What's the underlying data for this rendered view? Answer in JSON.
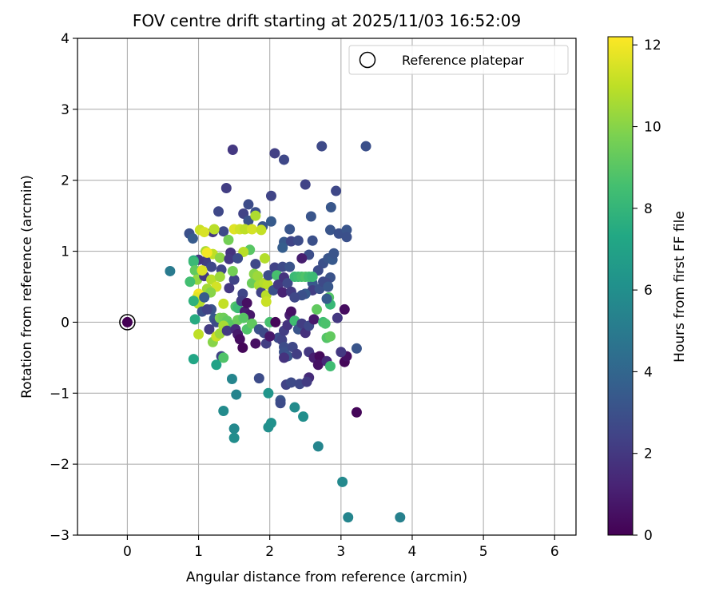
{
  "chart_data": {
    "type": "scatter",
    "title": "FOV centre drift starting at 2025/11/03 16:52:09",
    "xlabel": "Angular distance from reference (arcmin)",
    "ylabel": "Rotation from reference (arcmin)",
    "xlim": [
      -0.7,
      6.3
    ],
    "ylim": [
      -3,
      4
    ],
    "xticks": [
      0,
      1,
      2,
      3,
      4,
      5,
      6
    ],
    "xtick_labels": [
      "0",
      "1",
      "2",
      "3",
      "4",
      "5",
      "6"
    ],
    "yticks": [
      -3,
      -2,
      -1,
      0,
      1,
      2,
      3,
      4
    ],
    "ytick_labels": [
      "−3",
      "−2",
      "−1",
      "0",
      "1",
      "2",
      "3",
      "4"
    ],
    "grid": true,
    "legend": {
      "position": "top-right",
      "label": "Reference platepar"
    },
    "reference_point": {
      "x": 0,
      "y": 0
    },
    "colorbar": {
      "label": "Hours from first FF file",
      "min": 0,
      "max": 12.2,
      "ticks": [
        0,
        2,
        4,
        6,
        8,
        10,
        12
      ],
      "tick_labels": [
        "0",
        "2",
        "4",
        "6",
        "8",
        "10",
        "12"
      ],
      "colormap": "viridis"
    },
    "points": [
      {
        "x": 0.0,
        "y": 0.0,
        "h": 0.0
      },
      {
        "x": 1.48,
        "y": 2.43,
        "h": 2.0
      },
      {
        "x": 2.07,
        "y": 2.38,
        "h": 2.3
      },
      {
        "x": 2.2,
        "y": 2.29,
        "h": 2.6
      },
      {
        "x": 2.73,
        "y": 2.48,
        "h": 2.7
      },
      {
        "x": 3.35,
        "y": 2.48,
        "h": 3.0
      },
      {
        "x": 2.5,
        "y": 1.94,
        "h": 2.4
      },
      {
        "x": 2.93,
        "y": 1.85,
        "h": 2.6
      },
      {
        "x": 1.39,
        "y": 1.89,
        "h": 2.2
      },
      {
        "x": 2.02,
        "y": 1.78,
        "h": 2.5
      },
      {
        "x": 1.28,
        "y": 1.56,
        "h": 2.6
      },
      {
        "x": 1.63,
        "y": 1.53,
        "h": 2.4
      },
      {
        "x": 1.7,
        "y": 1.66,
        "h": 2.8
      },
      {
        "x": 1.8,
        "y": 1.55,
        "h": 3.0
      },
      {
        "x": 2.86,
        "y": 1.62,
        "h": 3.3
      },
      {
        "x": 2.58,
        "y": 1.49,
        "h": 3.2
      },
      {
        "x": 0.87,
        "y": 1.25,
        "h": 3.0
      },
      {
        "x": 0.92,
        "y": 1.18,
        "h": 3.5
      },
      {
        "x": 1.2,
        "y": 1.27,
        "h": 2.0
      },
      {
        "x": 1.35,
        "y": 1.28,
        "h": 2.7
      },
      {
        "x": 1.7,
        "y": 1.43,
        "h": 3.1
      },
      {
        "x": 1.9,
        "y": 1.35,
        "h": 3.3
      },
      {
        "x": 2.02,
        "y": 1.42,
        "h": 3.5
      },
      {
        "x": 2.28,
        "y": 1.31,
        "h": 3.2
      },
      {
        "x": 2.6,
        "y": 1.15,
        "h": 3.0
      },
      {
        "x": 2.85,
        "y": 1.3,
        "h": 3.2
      },
      {
        "x": 2.97,
        "y": 1.25,
        "h": 3.0
      },
      {
        "x": 3.08,
        "y": 1.3,
        "h": 3.2
      },
      {
        "x": 3.08,
        "y": 1.2,
        "h": 3.0
      },
      {
        "x": 2.2,
        "y": 1.13,
        "h": 3.4
      },
      {
        "x": 2.3,
        "y": 1.14,
        "h": 2.5
      },
      {
        "x": 2.4,
        "y": 1.15,
        "h": 2.8
      },
      {
        "x": 2.18,
        "y": 1.05,
        "h": 3.6
      },
      {
        "x": 1.02,
        "y": 1.3,
        "h": 11.2
      },
      {
        "x": 1.08,
        "y": 1.27,
        "h": 11.5
      },
      {
        "x": 1.22,
        "y": 1.31,
        "h": 10.9
      },
      {
        "x": 1.5,
        "y": 1.31,
        "h": 11.6
      },
      {
        "x": 1.58,
        "y": 1.31,
        "h": 11.3
      },
      {
        "x": 1.65,
        "y": 1.31,
        "h": 11.0
      },
      {
        "x": 1.8,
        "y": 1.5,
        "h": 10.7
      },
      {
        "x": 1.75,
        "y": 1.31,
        "h": 11.4
      },
      {
        "x": 1.88,
        "y": 1.3,
        "h": 11.1
      },
      {
        "x": 1.42,
        "y": 1.16,
        "h": 9.6
      },
      {
        "x": 1.72,
        "y": 1.02,
        "h": 9.0
      },
      {
        "x": 1.63,
        "y": 0.99,
        "h": 10.9
      },
      {
        "x": 1.1,
        "y": 1.0,
        "h": 10.6
      },
      {
        "x": 1.2,
        "y": 0.96,
        "h": 11.0
      },
      {
        "x": 1.3,
        "y": 0.91,
        "h": 10.1
      },
      {
        "x": 1.1,
        "y": 0.86,
        "h": 2.2
      },
      {
        "x": 1.18,
        "y": 0.78,
        "h": 2.6
      },
      {
        "x": 1.0,
        "y": 0.88,
        "h": 1.9
      },
      {
        "x": 1.45,
        "y": 0.98,
        "h": 1.8
      },
      {
        "x": 1.43,
        "y": 0.89,
        "h": 2.0
      },
      {
        "x": 1.32,
        "y": 0.74,
        "h": 2.5
      },
      {
        "x": 1.55,
        "y": 0.9,
        "h": 2.8
      },
      {
        "x": 1.8,
        "y": 0.82,
        "h": 2.6
      },
      {
        "x": 1.93,
        "y": 0.9,
        "h": 10.8
      },
      {
        "x": 2.07,
        "y": 0.77,
        "h": 2.4
      },
      {
        "x": 2.18,
        "y": 0.78,
        "h": 2.7
      },
      {
        "x": 2.28,
        "y": 0.78,
        "h": 3.1
      },
      {
        "x": 2.55,
        "y": 0.95,
        "h": 2.9
      },
      {
        "x": 2.45,
        "y": 0.9,
        "h": 1.0
      },
      {
        "x": 2.75,
        "y": 0.83,
        "h": 3.0
      },
      {
        "x": 2.82,
        "y": 0.9,
        "h": 3.2
      },
      {
        "x": 2.88,
        "y": 0.88,
        "h": 3.4
      },
      {
        "x": 2.9,
        "y": 0.97,
        "h": 3.2
      },
      {
        "x": 2.68,
        "y": 0.73,
        "h": 2.8
      },
      {
        "x": 2.85,
        "y": 0.63,
        "h": 3.1
      },
      {
        "x": 2.8,
        "y": 0.55,
        "h": 2.7
      },
      {
        "x": 2.6,
        "y": 0.55,
        "h": 3.4
      },
      {
        "x": 2.6,
        "y": 0.45,
        "h": 2.2
      },
      {
        "x": 0.6,
        "y": 0.72,
        "h": 5.0
      },
      {
        "x": 0.93,
        "y": 0.87,
        "h": 7.5
      },
      {
        "x": 0.93,
        "y": 0.85,
        "h": 8.2
      },
      {
        "x": 0.95,
        "y": 0.73,
        "h": 9.2
      },
      {
        "x": 0.98,
        "y": 0.6,
        "h": 10.2
      },
      {
        "x": 1.08,
        "y": 0.65,
        "h": 2.0
      },
      {
        "x": 1.18,
        "y": 0.6,
        "h": 10.9
      },
      {
        "x": 1.25,
        "y": 0.5,
        "h": 11.4
      },
      {
        "x": 1.3,
        "y": 0.64,
        "h": 10.4
      },
      {
        "x": 1.12,
        "y": 0.47,
        "h": 10.5
      },
      {
        "x": 1.17,
        "y": 0.42,
        "h": 10.0
      },
      {
        "x": 1.0,
        "y": 0.4,
        "h": 12.0
      },
      {
        "x": 0.98,
        "y": 0.35,
        "h": 11.7
      },
      {
        "x": 1.02,
        "y": 0.29,
        "h": 11.3
      },
      {
        "x": 1.0,
        "y": 0.26,
        "h": 10.8
      },
      {
        "x": 1.05,
        "y": 0.73,
        "h": 11.6
      },
      {
        "x": 1.12,
        "y": 0.98,
        "h": 12.0
      },
      {
        "x": 0.88,
        "y": 0.57,
        "h": 8.5
      },
      {
        "x": 0.93,
        "y": 0.3,
        "h": 7.8
      },
      {
        "x": 1.08,
        "y": 0.35,
        "h": 3.5
      },
      {
        "x": 1.18,
        "y": 0.18,
        "h": 3.1
      },
      {
        "x": 1.22,
        "y": 0.05,
        "h": 3.3
      },
      {
        "x": 1.35,
        "y": 0.26,
        "h": 11.1
      },
      {
        "x": 1.43,
        "y": 0.48,
        "h": 2.0
      },
      {
        "x": 1.5,
        "y": 0.6,
        "h": 2.4
      },
      {
        "x": 1.48,
        "y": 0.72,
        "h": 9.6
      },
      {
        "x": 1.52,
        "y": 0.22,
        "h": 8.8
      },
      {
        "x": 1.55,
        "y": 0.2,
        "h": 8.3
      },
      {
        "x": 1.62,
        "y": 0.4,
        "h": 2.5
      },
      {
        "x": 1.6,
        "y": 0.3,
        "h": 2.2
      },
      {
        "x": 1.65,
        "y": 0.15,
        "h": 1.0
      },
      {
        "x": 1.68,
        "y": 0.27,
        "h": 0.5
      },
      {
        "x": 1.72,
        "y": 0.1,
        "h": 0.8
      },
      {
        "x": 1.75,
        "y": 0.55,
        "h": 9.4
      },
      {
        "x": 1.78,
        "y": 0.68,
        "h": 10.0
      },
      {
        "x": 1.83,
        "y": 0.65,
        "h": 10.4
      },
      {
        "x": 1.85,
        "y": 0.52,
        "h": 10.6
      },
      {
        "x": 1.88,
        "y": 0.42,
        "h": 2.4
      },
      {
        "x": 1.92,
        "y": 0.55,
        "h": 10.8
      },
      {
        "x": 1.95,
        "y": 0.38,
        "h": 10.9
      },
      {
        "x": 1.97,
        "y": 0.53,
        "h": 11.0
      },
      {
        "x": 1.95,
        "y": 0.29,
        "h": 11.2
      },
      {
        "x": 1.98,
        "y": 0.66,
        "h": 2.9
      },
      {
        "x": 2.05,
        "y": 0.45,
        "h": 3.0
      },
      {
        "x": 2.1,
        "y": 0.66,
        "h": 8.6
      },
      {
        "x": 2.12,
        "y": 0.53,
        "h": 2.0
      },
      {
        "x": 2.2,
        "y": 0.63,
        "h": 1.8
      },
      {
        "x": 2.18,
        "y": 0.42,
        "h": 1.2
      },
      {
        "x": 2.25,
        "y": 0.55,
        "h": 2.6
      },
      {
        "x": 2.3,
        "y": 0.43,
        "h": 2.1
      },
      {
        "x": 2.35,
        "y": 0.64,
        "h": 8.2
      },
      {
        "x": 2.4,
        "y": 0.64,
        "h": 8.4
      },
      {
        "x": 2.45,
        "y": 0.64,
        "h": 8.6
      },
      {
        "x": 2.5,
        "y": 0.64,
        "h": 8.8
      },
      {
        "x": 2.55,
        "y": 0.64,
        "h": 8.5
      },
      {
        "x": 2.6,
        "y": 0.64,
        "h": 8.3
      },
      {
        "x": 2.7,
        "y": 0.47,
        "h": 3.0
      },
      {
        "x": 2.75,
        "y": 0.57,
        "h": 2.7
      },
      {
        "x": 2.82,
        "y": 0.5,
        "h": 3.3
      },
      {
        "x": 2.83,
        "y": 0.35,
        "h": 8.9
      },
      {
        "x": 2.85,
        "y": 0.25,
        "h": 8.1
      },
      {
        "x": 2.8,
        "y": 0.33,
        "h": 3.5
      },
      {
        "x": 2.5,
        "y": 0.4,
        "h": 3.4
      },
      {
        "x": 2.45,
        "y": 0.38,
        "h": 3.0
      },
      {
        "x": 2.35,
        "y": 0.35,
        "h": 2.6
      },
      {
        "x": 1.05,
        "y": 0.15,
        "h": 3.0
      },
      {
        "x": 1.12,
        "y": 0.18,
        "h": 2.4
      },
      {
        "x": 1.15,
        "y": -0.1,
        "h": 2.1
      },
      {
        "x": 1.25,
        "y": 0.0,
        "h": 2.8
      },
      {
        "x": 1.3,
        "y": 0.06,
        "h": 9.8
      },
      {
        "x": 1.35,
        "y": 0.06,
        "h": 9.5
      },
      {
        "x": 1.4,
        "y": 0.02,
        "h": 9.2
      },
      {
        "x": 1.45,
        "y": -0.04,
        "h": 9.0
      },
      {
        "x": 1.55,
        "y": 0.03,
        "h": 9.4
      },
      {
        "x": 1.63,
        "y": 0.06,
        "h": 9.0
      },
      {
        "x": 1.68,
        "y": -0.1,
        "h": 8.8
      },
      {
        "x": 1.75,
        "y": -0.02,
        "h": 9.2
      },
      {
        "x": 1.85,
        "y": -0.1,
        "h": 3.0
      },
      {
        "x": 1.92,
        "y": -0.15,
        "h": 2.7
      },
      {
        "x": 1.95,
        "y": -0.3,
        "h": 2.2
      },
      {
        "x": 2.0,
        "y": 0.0,
        "h": 8.6
      },
      {
        "x": 2.08,
        "y": 0.0,
        "h": 0.2
      },
      {
        "x": 2.12,
        "y": -0.22,
        "h": 2.8
      },
      {
        "x": 2.17,
        "y": -0.25,
        "h": 2.4
      },
      {
        "x": 2.2,
        "y": -0.12,
        "h": 2.2
      },
      {
        "x": 2.25,
        "y": -0.04,
        "h": 1.8
      },
      {
        "x": 2.28,
        "y": 0.1,
        "h": 1.0
      },
      {
        "x": 2.3,
        "y": 0.15,
        "h": 0.6
      },
      {
        "x": 2.35,
        "y": 0.02,
        "h": 8.4
      },
      {
        "x": 2.4,
        "y": -0.1,
        "h": 3.2
      },
      {
        "x": 2.45,
        "y": -0.02,
        "h": 2.2
      },
      {
        "x": 2.5,
        "y": -0.15,
        "h": 1.7
      },
      {
        "x": 2.55,
        "y": -0.05,
        "h": 2.6
      },
      {
        "x": 2.62,
        "y": 0.04,
        "h": 0.8
      },
      {
        "x": 2.66,
        "y": 0.18,
        "h": 9.2
      },
      {
        "x": 2.75,
        "y": 0.0,
        "h": 8.4
      },
      {
        "x": 2.78,
        "y": -0.02,
        "h": 8.7
      },
      {
        "x": 2.8,
        "y": -0.22,
        "h": 8.9
      },
      {
        "x": 2.85,
        "y": -0.2,
        "h": 9.2
      },
      {
        "x": 2.95,
        "y": 0.06,
        "h": 2.0
      },
      {
        "x": 3.05,
        "y": 0.18,
        "h": 0.4
      },
      {
        "x": 1.0,
        "y": -0.17,
        "h": 11.0
      },
      {
        "x": 1.2,
        "y": -0.28,
        "h": 10.0
      },
      {
        "x": 1.25,
        "y": -0.2,
        "h": 11.2
      },
      {
        "x": 1.3,
        "y": -0.16,
        "h": 10.4
      },
      {
        "x": 1.35,
        "y": -0.05,
        "h": 10.6
      },
      {
        "x": 1.32,
        "y": -0.48,
        "h": 2.4
      },
      {
        "x": 1.25,
        "y": -0.6,
        "h": 7.0
      },
      {
        "x": 1.35,
        "y": -0.5,
        "h": 8.8
      },
      {
        "x": 0.93,
        "y": -0.52,
        "h": 7.2
      },
      {
        "x": 0.95,
        "y": 0.04,
        "h": 7.5
      },
      {
        "x": 1.4,
        "y": -0.12,
        "h": 2.1
      },
      {
        "x": 1.52,
        "y": -0.1,
        "h": 1.5
      },
      {
        "x": 1.55,
        "y": -0.17,
        "h": 0.9
      },
      {
        "x": 1.58,
        "y": -0.24,
        "h": 0.4
      },
      {
        "x": 1.62,
        "y": -0.36,
        "h": 0.2
      },
      {
        "x": 1.8,
        "y": -0.3,
        "h": 0.5
      },
      {
        "x": 2.0,
        "y": -0.2,
        "h": 0.8
      },
      {
        "x": 2.2,
        "y": -0.35,
        "h": 2.8
      },
      {
        "x": 2.2,
        "y": -0.42,
        "h": 3.0
      },
      {
        "x": 2.25,
        "y": -0.48,
        "h": 3.2
      },
      {
        "x": 2.32,
        "y": -0.35,
        "h": 2.6
      },
      {
        "x": 2.38,
        "y": -0.45,
        "h": 2.2
      },
      {
        "x": 2.55,
        "y": -0.42,
        "h": 2.0
      },
      {
        "x": 2.62,
        "y": -0.5,
        "h": 1.0
      },
      {
        "x": 2.7,
        "y": -0.48,
        "h": 0.3
      },
      {
        "x": 2.68,
        "y": -0.6,
        "h": 0.6
      },
      {
        "x": 2.8,
        "y": -0.55,
        "h": 1.4
      },
      {
        "x": 2.85,
        "y": -0.62,
        "h": 8.4
      },
      {
        "x": 3.05,
        "y": -0.56,
        "h": 0.2
      },
      {
        "x": 3.08,
        "y": -0.48,
        "h": 0.5
      },
      {
        "x": 3.0,
        "y": -0.42,
        "h": 2.0
      },
      {
        "x": 3.22,
        "y": -0.37,
        "h": 3.2
      },
      {
        "x": 3.22,
        "y": -1.27,
        "h": 0.2
      },
      {
        "x": 2.2,
        "y": -0.5,
        "h": 1.8
      },
      {
        "x": 1.85,
        "y": -0.79,
        "h": 2.8
      },
      {
        "x": 2.23,
        "y": -0.88,
        "h": 2.4
      },
      {
        "x": 2.3,
        "y": -0.85,
        "h": 2.7
      },
      {
        "x": 2.42,
        "y": -0.87,
        "h": 2.6
      },
      {
        "x": 2.55,
        "y": -0.78,
        "h": 1.5
      },
      {
        "x": 2.52,
        "y": -0.84,
        "h": 2.1
      },
      {
        "x": 1.47,
        "y": -0.8,
        "h": 5.5
      },
      {
        "x": 1.53,
        "y": -1.02,
        "h": 5.4
      },
      {
        "x": 1.35,
        "y": -1.25,
        "h": 5.8
      },
      {
        "x": 1.5,
        "y": -1.5,
        "h": 5.7
      },
      {
        "x": 1.5,
        "y": -1.63,
        "h": 5.9
      },
      {
        "x": 1.98,
        "y": -1.48,
        "h": 6.0
      },
      {
        "x": 2.02,
        "y": -1.42,
        "h": 6.1
      },
      {
        "x": 1.98,
        "y": -1.0,
        "h": 6.3
      },
      {
        "x": 2.15,
        "y": -1.1,
        "h": 3.2
      },
      {
        "x": 2.15,
        "y": -1.14,
        "h": 2.8
      },
      {
        "x": 2.35,
        "y": -1.2,
        "h": 5.8
      },
      {
        "x": 2.47,
        "y": -1.33,
        "h": 6.0
      },
      {
        "x": 2.68,
        "y": -1.75,
        "h": 5.5
      },
      {
        "x": 3.02,
        "y": -2.25,
        "h": 5.7
      },
      {
        "x": 3.1,
        "y": -2.75,
        "h": 5.5
      },
      {
        "x": 3.83,
        "y": -2.75,
        "h": 5.3
      }
    ]
  }
}
